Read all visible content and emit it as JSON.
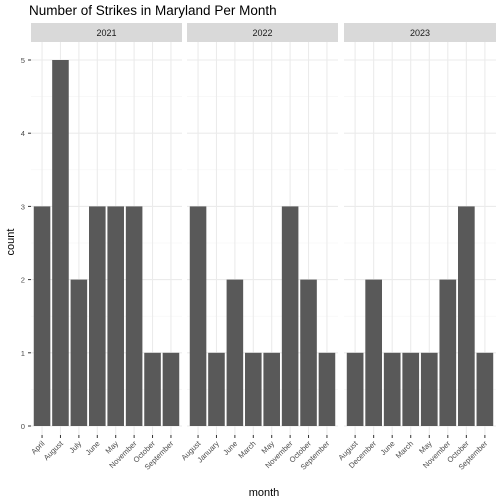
{
  "chart_data": {
    "type": "bar",
    "title": "Number of Strikes in Maryland Per Month",
    "xlabel": "month",
    "ylabel": "count",
    "ylim": [
      0,
      5.25
    ],
    "yticks": [
      0,
      1,
      2,
      3,
      4,
      5
    ],
    "grid": true,
    "colors": {
      "bar": "#595959",
      "panel": "#ffffff",
      "strip": "#d9d9d9",
      "grid_major": "#ebebeb",
      "grid_minor": "#f4f4f4"
    },
    "panels": [
      {
        "strip": "2021",
        "categories": [
          "April",
          "August",
          "July",
          "June",
          "May",
          "November",
          "October",
          "September"
        ],
        "values": [
          3,
          5,
          2,
          3,
          3,
          3,
          1,
          1
        ]
      },
      {
        "strip": "2022",
        "categories": [
          "August",
          "January",
          "June",
          "March",
          "May",
          "November",
          "October",
          "September"
        ],
        "values": [
          3,
          1,
          2,
          1,
          1,
          3,
          2,
          1
        ]
      },
      {
        "strip": "2023",
        "categories": [
          "August",
          "December",
          "June",
          "March",
          "May",
          "November",
          "October",
          "September"
        ],
        "values": [
          1,
          2,
          1,
          1,
          1,
          2,
          3,
          1
        ]
      }
    ]
  }
}
